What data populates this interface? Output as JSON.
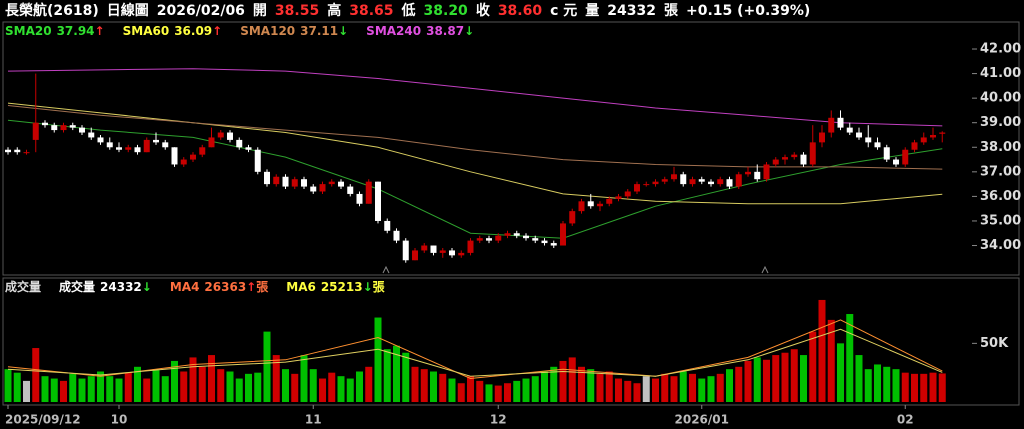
{
  "header": {
    "items": [
      {
        "text": "長榮航(2618)",
        "color": "#ffffff"
      },
      {
        "text": "日線圖",
        "color": "#ffffff"
      },
      {
        "text": "2026/02/06",
        "color": "#ffffff"
      },
      {
        "text": "開",
        "color": "#ffffff"
      },
      {
        "text": "38.55",
        "color": "#ff3030"
      },
      {
        "text": "高",
        "color": "#ffffff"
      },
      {
        "text": "38.65",
        "color": "#ff3030"
      },
      {
        "text": "低",
        "color": "#ffffff"
      },
      {
        "text": "38.20",
        "color": "#30e030"
      },
      {
        "text": "收",
        "color": "#ffffff"
      },
      {
        "text": "38.60",
        "color": "#ff3030"
      },
      {
        "text": "c 元",
        "color": "#ffffff"
      },
      {
        "text": "量",
        "color": "#ffffff"
      },
      {
        "text": "24332",
        "color": "#ffffff"
      },
      {
        "text": "張",
        "color": "#ffffff"
      },
      {
        "text": "+0.15 (+0.39%)",
        "color": "#ffffff"
      }
    ]
  },
  "chart_data": [
    {
      "type": "candlestick",
      "up_color": "#c80000",
      "down_color": "#ffffff",
      "open": [
        37.9,
        37.9,
        37.8,
        38.3,
        39.0,
        38.9,
        38.7,
        38.9,
        38.8,
        38.6,
        38.4,
        38.2,
        38.0,
        37.9,
        38.0,
        37.8,
        38.3,
        38.2,
        38.0,
        37.3,
        37.5,
        37.7,
        38.0,
        38.4,
        38.6,
        38.3,
        38.0,
        37.9,
        37.0,
        36.5,
        36.8,
        36.4,
        36.7,
        36.4,
        36.2,
        36.5,
        36.6,
        36.4,
        36.1,
        35.7,
        36.6,
        35.0,
        34.6,
        34.2,
        33.4,
        33.8,
        34.0,
        33.7,
        33.8,
        33.6,
        33.7,
        34.2,
        34.3,
        34.2,
        34.4,
        34.5,
        34.4,
        34.3,
        34.2,
        34.1,
        34.0,
        34.9,
        35.4,
        35.8,
        35.6,
        35.7,
        35.9,
        36.0,
        36.2,
        36.5,
        36.5,
        36.6,
        36.7,
        36.9,
        36.5,
        36.7,
        36.6,
        36.5,
        36.7,
        36.4,
        36.9,
        37.0,
        36.7,
        37.3,
        37.5,
        37.6,
        37.7,
        37.3,
        38.2,
        38.6,
        39.2,
        38.8,
        38.6,
        38.4,
        38.2,
        38.0,
        37.5,
        37.3,
        37.9,
        38.2,
        38.4,
        38.55
      ],
      "high": [
        38.0,
        38.0,
        37.9,
        41.0,
        39.1,
        39.0,
        39.0,
        39.0,
        38.9,
        38.8,
        38.5,
        38.4,
        38.2,
        38.1,
        38.1,
        38.4,
        38.6,
        38.3,
        38.0,
        37.6,
        37.8,
        38.1,
        38.8,
        38.7,
        38.7,
        38.4,
        38.1,
        38.0,
        37.1,
        36.9,
        36.9,
        36.8,
        36.8,
        36.5,
        36.6,
        36.7,
        36.7,
        36.5,
        36.2,
        36.7,
        36.6,
        35.1,
        34.7,
        34.3,
        33.9,
        34.1,
        34.0,
        33.9,
        33.9,
        33.8,
        34.3,
        34.4,
        34.4,
        34.5,
        34.6,
        34.6,
        34.5,
        34.4,
        34.3,
        34.2,
        35.0,
        35.5,
        35.9,
        36.1,
        35.8,
        36.0,
        36.1,
        36.3,
        36.6,
        36.6,
        36.7,
        36.8,
        37.2,
        37.0,
        36.8,
        36.8,
        36.7,
        36.8,
        36.8,
        37.0,
        37.2,
        37.3,
        37.4,
        37.6,
        37.7,
        37.8,
        37.8,
        38.9,
        38.9,
        39.5,
        39.5,
        39.0,
        38.8,
        38.9,
        38.4,
        38.1,
        37.6,
        38.0,
        38.3,
        38.6,
        38.8,
        38.65
      ],
      "low": [
        37.7,
        37.7,
        37.7,
        37.8,
        38.8,
        38.6,
        38.6,
        38.7,
        38.5,
        38.3,
        38.1,
        37.9,
        37.8,
        37.8,
        37.7,
        37.8,
        38.1,
        37.9,
        37.2,
        37.2,
        37.4,
        37.6,
        38.0,
        38.3,
        38.2,
        37.9,
        37.8,
        36.9,
        36.4,
        36.4,
        36.3,
        36.3,
        36.3,
        36.1,
        36.1,
        36.4,
        36.3,
        36.0,
        35.6,
        35.7,
        34.9,
        34.5,
        34.1,
        33.3,
        33.4,
        33.7,
        33.6,
        33.5,
        33.5,
        33.5,
        33.6,
        34.1,
        34.1,
        34.1,
        34.3,
        34.3,
        34.2,
        34.1,
        34.0,
        33.9,
        34.0,
        34.8,
        35.3,
        35.5,
        35.4,
        35.6,
        35.8,
        35.9,
        36.1,
        36.4,
        36.4,
        36.5,
        36.6,
        36.4,
        36.4,
        36.5,
        36.4,
        36.4,
        36.3,
        36.3,
        36.8,
        36.6,
        36.6,
        37.2,
        37.3,
        37.5,
        37.2,
        37.2,
        38.0,
        38.4,
        38.7,
        38.5,
        38.3,
        38.0,
        37.9,
        37.4,
        37.2,
        37.2,
        37.8,
        38.1,
        38.3,
        38.2
      ],
      "close": [
        37.8,
        37.8,
        37.8,
        39.0,
        38.9,
        38.7,
        38.9,
        38.8,
        38.6,
        38.4,
        38.2,
        38.0,
        37.9,
        38.0,
        37.8,
        38.3,
        38.2,
        38.0,
        37.3,
        37.5,
        37.7,
        38.0,
        38.4,
        38.6,
        38.3,
        38.0,
        37.9,
        37.0,
        36.5,
        36.8,
        36.4,
        36.7,
        36.4,
        36.2,
        36.5,
        36.6,
        36.4,
        36.1,
        35.7,
        36.6,
        35.0,
        34.6,
        34.2,
        33.4,
        33.8,
        34.0,
        33.7,
        33.8,
        33.6,
        33.7,
        34.2,
        34.3,
        34.2,
        34.4,
        34.5,
        34.4,
        34.3,
        34.2,
        34.1,
        34.0,
        34.9,
        35.4,
        35.8,
        35.6,
        35.7,
        35.9,
        36.0,
        36.2,
        36.5,
        36.5,
        36.6,
        36.7,
        36.9,
        36.5,
        36.7,
        36.6,
        36.5,
        36.7,
        36.4,
        36.9,
        37.0,
        36.7,
        37.3,
        37.5,
        37.6,
        37.7,
        37.3,
        38.2,
        38.6,
        39.2,
        38.8,
        38.6,
        38.4,
        38.2,
        38.0,
        37.5,
        37.3,
        37.9,
        38.2,
        38.4,
        38.5,
        38.6
      ],
      "series": [
        {
          "name": "SMA20",
          "color": "#2ea02e",
          "text_color": "#30e030",
          "arrow": "↑",
          "arrow_color": "#ff3030",
          "x": [
            0,
            10,
            20,
            30,
            40,
            50,
            60,
            70,
            80,
            90,
            101
          ],
          "values": [
            39.1,
            38.7,
            38.4,
            37.6,
            36.3,
            34.5,
            34.3,
            35.6,
            36.5,
            37.3,
            37.94
          ]
        },
        {
          "name": "SMA60",
          "color": "#d8cc60",
          "text_color": "#ffff40",
          "arrow": "↑",
          "arrow_color": "#ff3030",
          "x": [
            0,
            10,
            20,
            30,
            40,
            50,
            60,
            70,
            80,
            90,
            101
          ],
          "values": [
            39.8,
            39.4,
            39.0,
            38.6,
            38.0,
            37.0,
            36.1,
            35.8,
            35.7,
            35.7,
            36.09
          ]
        },
        {
          "name": "SMA120",
          "color": "#a07050",
          "text_color": "#d08850",
          "arrow": "↓",
          "arrow_color": "#30e030",
          "x": [
            0,
            10,
            20,
            30,
            40,
            50,
            60,
            70,
            80,
            90,
            101
          ],
          "values": [
            39.7,
            39.3,
            39.0,
            38.7,
            38.4,
            37.9,
            37.5,
            37.3,
            37.2,
            37.2,
            37.11
          ]
        },
        {
          "name": "SMA240",
          "color": "#c040c0",
          "text_color": "#e050e0",
          "arrow": "↓",
          "arrow_color": "#30e030",
          "x": [
            0,
            10,
            20,
            30,
            40,
            50,
            60,
            70,
            80,
            90,
            101
          ],
          "values": [
            41.1,
            41.15,
            41.2,
            41.1,
            40.8,
            40.4,
            40.0,
            39.6,
            39.3,
            39.0,
            38.87
          ]
        }
      ],
      "ylim": [
        32.8,
        43.1
      ],
      "yticks": [
        {
          "value": 34,
          "label": "34.00"
        },
        {
          "value": 35,
          "label": "35.00"
        },
        {
          "value": 36,
          "label": "36.00"
        },
        {
          "value": 37,
          "label": "37.00"
        },
        {
          "value": 38,
          "label": "38.00"
        },
        {
          "value": 39,
          "label": "39.00"
        },
        {
          "value": 40,
          "label": "40.00"
        },
        {
          "value": 41,
          "label": "41.00"
        },
        {
          "value": 42,
          "label": "42.00"
        }
      ]
    },
    {
      "type": "bar",
      "title": "成交量",
      "name": "成交量",
      "unit": "張",
      "legend_arrow": "↓",
      "legend_arrow_color": "#30e030",
      "up_color": "#d00000",
      "down_color": "#00c000",
      "flat_color": "#c0c0c0",
      "categories": [
        "2025/09/12",
        null,
        null,
        null,
        null,
        null,
        null,
        null,
        null,
        null,
        null,
        null,
        "10",
        null,
        null,
        null,
        null,
        null,
        null,
        null,
        null,
        null,
        null,
        null,
        null,
        null,
        null,
        null,
        null,
        null,
        null,
        null,
        null,
        "11",
        null,
        null,
        null,
        null,
        null,
        null,
        null,
        null,
        null,
        null,
        null,
        null,
        null,
        null,
        null,
        null,
        null,
        null,
        null,
        "12",
        null,
        null,
        null,
        null,
        null,
        null,
        null,
        null,
        null,
        null,
        null,
        null,
        null,
        null,
        null,
        null,
        null,
        null,
        null,
        null,
        null,
        "2026/01",
        null,
        null,
        null,
        null,
        null,
        null,
        null,
        null,
        null,
        null,
        null,
        null,
        null,
        null,
        null,
        null,
        null,
        null,
        null,
        null,
        null,
        "02",
        null,
        null,
        null,
        null
      ],
      "values": [
        28000,
        25000,
        18000,
        46000,
        22000,
        20000,
        18000,
        24000,
        20000,
        22000,
        26000,
        22000,
        20000,
        25000,
        30000,
        20000,
        28000,
        22000,
        35000,
        26000,
        38000,
        30000,
        40000,
        28000,
        26000,
        20000,
        24000,
        25000,
        60000,
        40000,
        28000,
        24000,
        40000,
        28000,
        20000,
        25000,
        22000,
        20000,
        26000,
        30000,
        72000,
        45000,
        48000,
        42000,
        30000,
        28000,
        26000,
        24000,
        20000,
        16000,
        22000,
        18000,
        15000,
        14000,
        16000,
        18000,
        20000,
        22000,
        26000,
        30000,
        35000,
        38000,
        30000,
        28000,
        24000,
        26000,
        20000,
        18000,
        16000,
        22000,
        20000,
        24000,
        22000,
        26000,
        24000,
        20000,
        22000,
        24000,
        28000,
        30000,
        35000,
        38000,
        36000,
        40000,
        42000,
        45000,
        40000,
        60000,
        87000,
        70000,
        50000,
        75000,
        40000,
        28000,
        32000,
        30000,
        28000,
        25000,
        24000,
        24000,
        25000,
        24332
      ],
      "series": [
        {
          "name": "MA4",
          "color": "#ff9030",
          "text_color": "#ff7040",
          "arrow": "↑",
          "arrow_color": "#ff3030",
          "x": [
            0,
            10,
            20,
            30,
            40,
            50,
            60,
            70,
            80,
            90,
            101
          ],
          "values": [
            30000,
            22000,
            32000,
            36000,
            55000,
            20000,
            28000,
            22000,
            38000,
            70000,
            26363
          ]
        },
        {
          "name": "MA6",
          "color": "#e0d060",
          "text_color": "#ffff40",
          "arrow": "↓",
          "arrow_color": "#30e030",
          "x": [
            0,
            10,
            20,
            30,
            40,
            50,
            60,
            70,
            80,
            90,
            101
          ],
          "values": [
            28000,
            23000,
            30000,
            34000,
            45000,
            22000,
            26000,
            22000,
            36000,
            62000,
            25213
          ]
        }
      ],
      "ylim": [
        0,
        104000
      ],
      "yticks": [
        {
          "value": 50000,
          "label": "50K"
        }
      ]
    }
  ]
}
